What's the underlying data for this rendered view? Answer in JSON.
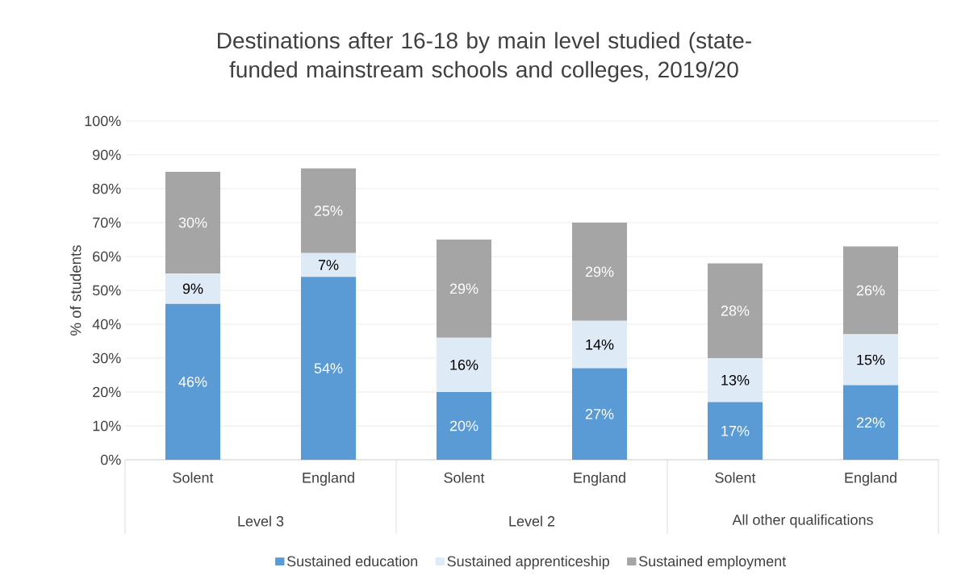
{
  "chart_data": {
    "type": "bar",
    "stacked": true,
    "title": "Destinations after 16-18 by main level studied (state-funded mainstream schools and colleges, 2019/20",
    "ylabel": "% of students",
    "categories": [
      "Solent",
      "England",
      "Solent",
      "England",
      "Solent",
      "England"
    ],
    "annotations": [
      "Level 3",
      "Level 2",
      "All other qualifications"
    ],
    "series": [
      {
        "name": "Sustained education",
        "color": "#5b9bd5",
        "values": [
          46,
          54,
          20,
          27,
          17,
          22
        ],
        "value_labels": [
          "46%",
          "54%",
          "20%",
          "27%",
          "17%",
          "22%"
        ]
      },
      {
        "name": "Sustained apprenticeship",
        "color": "#deebf7",
        "values": [
          9,
          7,
          16,
          14,
          13,
          15
        ],
        "value_labels": [
          "9%",
          "7%",
          "16%",
          "14%",
          "13%",
          "15%"
        ]
      },
      {
        "name": "Sustained employment",
        "color": "#a5a5a5",
        "values": [
          30,
          25,
          29,
          29,
          28,
          26
        ],
        "value_labels": [
          "30%",
          "25%",
          "29%",
          "29%",
          "28%",
          "26%"
        ]
      }
    ],
    "ylim": [
      0,
      100
    ],
    "yticks": [
      {
        "value": 0,
        "label": "0%"
      },
      {
        "value": 10,
        "label": "10%"
      },
      {
        "value": 20,
        "label": "20%"
      },
      {
        "value": 30,
        "label": "30%"
      },
      {
        "value": 40,
        "label": "40%"
      },
      {
        "value": 50,
        "label": "50%"
      },
      {
        "value": 60,
        "label": "60%"
      },
      {
        "value": 70,
        "label": "70%"
      },
      {
        "value": 80,
        "label": "80%"
      },
      {
        "value": 90,
        "label": "90%"
      },
      {
        "value": 100,
        "label": "100%"
      }
    ],
    "grid": "y",
    "legend": "bottom"
  }
}
